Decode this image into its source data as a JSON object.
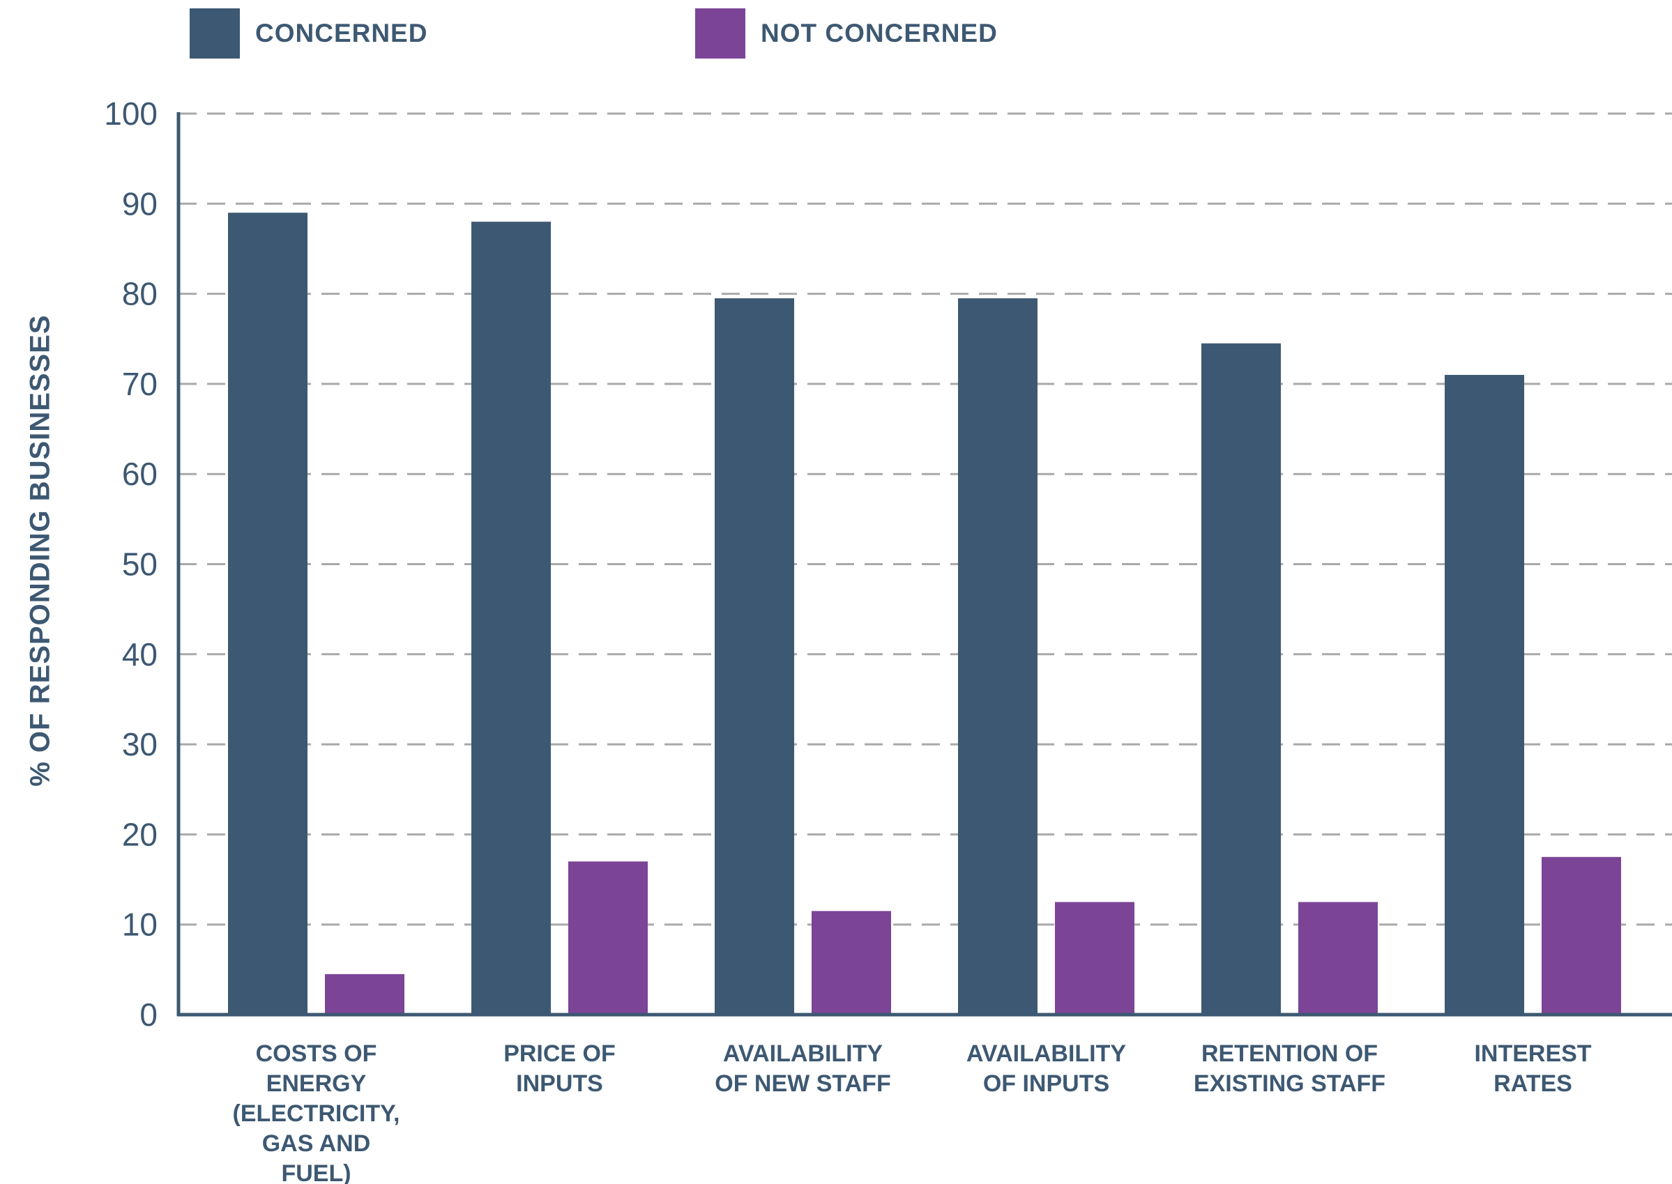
{
  "chart_data": {
    "type": "bar",
    "categories": [
      "COSTS OF ENERGY (ELECTRICITY, GAS AND FUEL)",
      "PRICE OF INPUTS",
      "AVAILABILITY OF NEW STAFF",
      "AVAILABILITY OF INPUTS",
      "RETENTION OF EXISTING STAFF",
      "INTEREST RATES"
    ],
    "category_lines": [
      [
        "COSTS OF",
        "ENERGY",
        "(ELECTRICITY,",
        "GAS AND",
        "FUEL)"
      ],
      [
        "PRICE OF",
        "INPUTS"
      ],
      [
        "AVAILABILITY",
        "OF NEW STAFF"
      ],
      [
        "AVAILABILITY",
        "OF INPUTS"
      ],
      [
        "RETENTION OF",
        "EXISTING STAFF"
      ],
      [
        "INTEREST",
        "RATES"
      ]
    ],
    "series": [
      {
        "name": "CONCERNED",
        "color": "#3d5872",
        "values": [
          89,
          88,
          79.5,
          79.5,
          74.5,
          71
        ]
      },
      {
        "name": "NOT CONCERNED",
        "color": "#7b4497",
        "values": [
          4.5,
          17,
          11.5,
          12.5,
          12.5,
          17.5
        ]
      }
    ],
    "ylabel": "% OF RESPONDING BUSINESSES",
    "xlabel": "",
    "ylim": [
      0,
      100
    ],
    "yticks": [
      0,
      10,
      20,
      30,
      40,
      50,
      60,
      70,
      80,
      90,
      100
    ],
    "grid": true,
    "legend": "top-left"
  }
}
